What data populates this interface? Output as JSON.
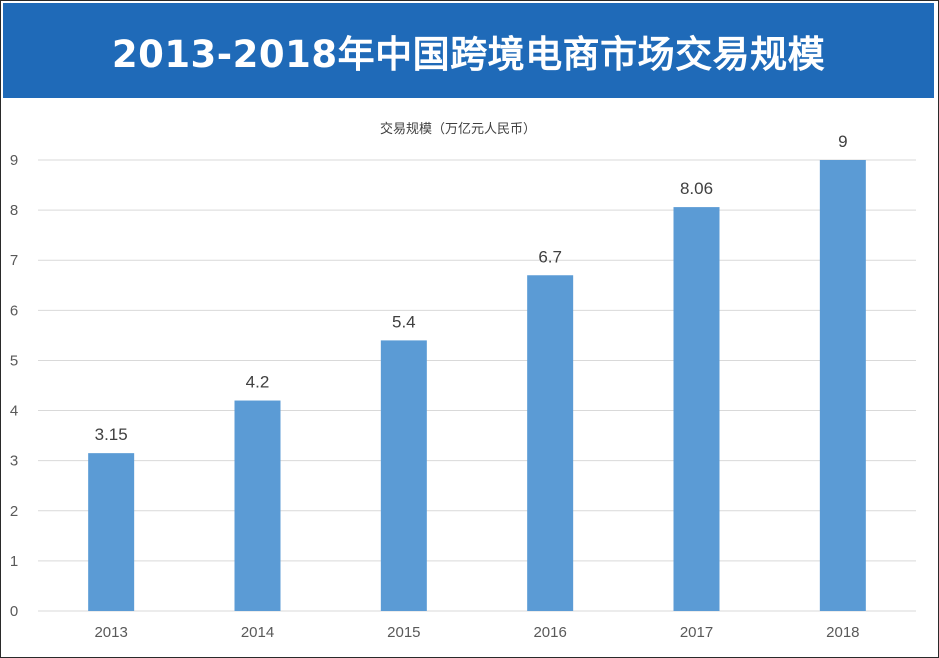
{
  "banner": {
    "title": "2013-2018年中国跨境电商市场交易规模"
  },
  "chart_data": {
    "type": "bar",
    "title": "交易规模（万亿元人民币）",
    "xlabel": "",
    "ylabel": "",
    "categories": [
      "2013",
      "2014",
      "2015",
      "2016",
      "2017",
      "2018"
    ],
    "values": [
      3.15,
      4.2,
      5.4,
      6.7,
      8.06,
      9
    ],
    "data_labels": [
      "3.15",
      "4.2",
      "5.4",
      "6.7",
      "8.06",
      "9"
    ],
    "ylim": [
      0,
      9
    ],
    "yticks": [
      0,
      1,
      2,
      3,
      4,
      5,
      6,
      7,
      8,
      9
    ],
    "grid": true,
    "bar_color": "#5b9bd5",
    "grid_color": "#d9d9d9"
  }
}
